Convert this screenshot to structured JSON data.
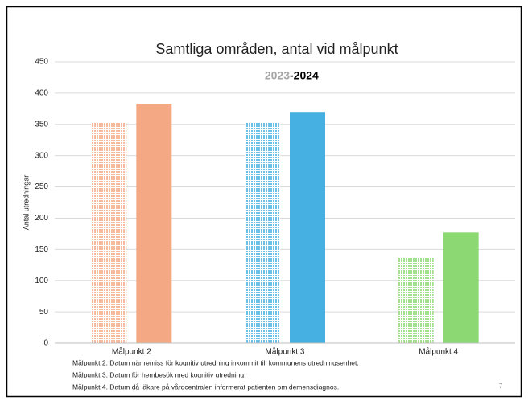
{
  "chart_data": {
    "type": "bar",
    "title": "Samtliga områden, antal vid målpunkt",
    "subtitle_parts": [
      "2023",
      "-2024"
    ],
    "y_label": "Antal utredningar",
    "categories": [
      "Målpunkt 2",
      "Målpunkt 3",
      "Målpunkt 4"
    ],
    "series": [
      {
        "name": "2023",
        "colors": [
          "#f4a984",
          "#45b0e1",
          "#8cd872"
        ],
        "pattern": "dotted",
        "values": [
          353,
          353,
          137
        ]
      },
      {
        "name": "2024",
        "colors": [
          "#f4a984",
          "#45b0e1",
          "#8cd872"
        ],
        "pattern": "solid",
        "values": [
          383,
          370,
          177
        ]
      }
    ],
    "ylim": [
      0,
      450
    ],
    "yticks": [
      0,
      50,
      100,
      150,
      200,
      250,
      300,
      350,
      400,
      450
    ],
    "grid": true,
    "footnotes": [
      "Målpunkt 2. Datum när remiss för kognitiv utredning inkommit till kommunens utredningsenhet.",
      "Målpunkt 3. Datum för hembesök med kognitiv utredning.",
      "Målpunkt 4. Datum då läkare på vårdcentralen informerat patienten om demensdiagnos."
    ],
    "page_number": "7"
  }
}
